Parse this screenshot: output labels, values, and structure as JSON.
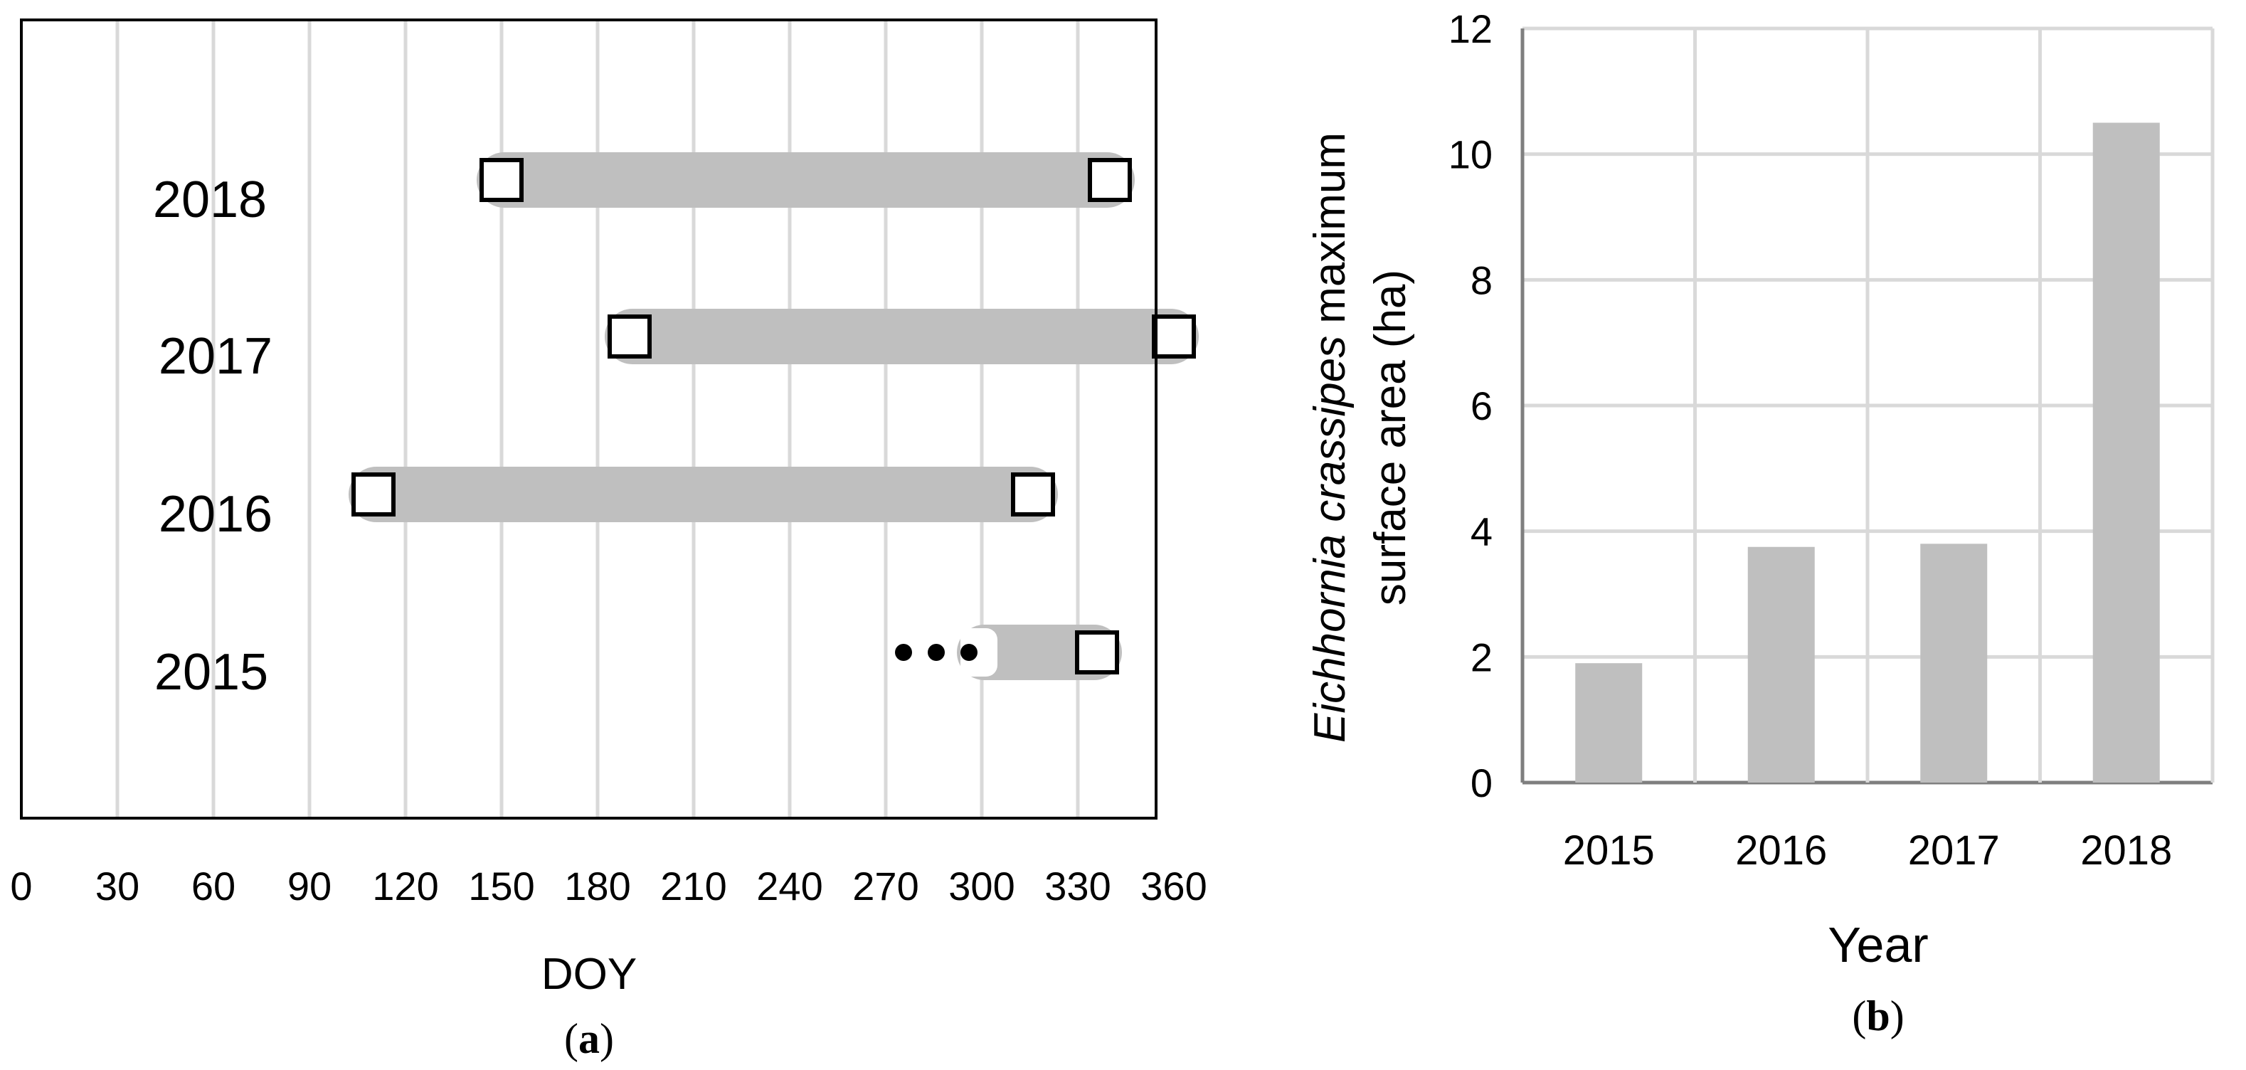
{
  "chart_data": [
    {
      "id": "a",
      "type": "bar",
      "orientation": "horizontal-range",
      "panel_letter": "a",
      "xlabel": "DOY",
      "ylabel": "",
      "xlim": [
        0,
        365
      ],
      "xticks": [
        0,
        30,
        60,
        90,
        120,
        150,
        180,
        210,
        240,
        270,
        300,
        330,
        360
      ],
      "grid": "vertical",
      "rows": [
        {
          "year": "2018",
          "start": 150,
          "end": 340,
          "start_marker": "square",
          "end_marker": "square"
        },
        {
          "year": "2017",
          "start": 190,
          "end": 360,
          "start_marker": "square",
          "end_marker": "square"
        },
        {
          "year": "2016",
          "start": 110,
          "end": 316,
          "start_marker": "square",
          "end_marker": "square"
        },
        {
          "year": "2015",
          "start": 300,
          "end": 336,
          "start_marker": "none",
          "end_marker": "square",
          "continues_before_start": true
        }
      ],
      "colors": {
        "range_bar": "#bfbfbf",
        "grid": "#d9d9d9",
        "axis": "#000000",
        "marker_fill": "#ffffff",
        "marker_stroke": "#000000"
      }
    },
    {
      "id": "b",
      "type": "bar",
      "panel_letter": "b",
      "xlabel": "Year",
      "ylabel_italic": "Eichhornia crassipes",
      "ylabel_rest": " maximum",
      "ylabel_line2": "surface area (ha)",
      "categories": [
        "2015",
        "2016",
        "2017",
        "2018"
      ],
      "values": [
        1.9,
        3.75,
        3.8,
        10.5
      ],
      "ylim": [
        0,
        12
      ],
      "yticks": [
        0,
        2,
        4,
        6,
        8,
        10,
        12
      ],
      "grid": "both",
      "colors": {
        "bar": "#bfbfbf",
        "grid": "#d9d9d9",
        "axis": "#7f7f7f"
      }
    }
  ]
}
